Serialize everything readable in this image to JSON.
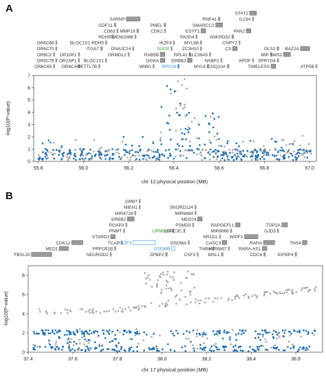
{
  "chart_data": [
    {
      "panel": "A",
      "type": "scatter",
      "xlabel": "chr 12 physical position (MB)",
      "ylabel": "-log10(P-value)",
      "xlim": [
        55.78,
        57.03
      ],
      "ylim": [
        0,
        7
      ],
      "xticks": [
        "55.8",
        "56.0",
        "56.2",
        "56.4",
        "56.6",
        "56.8",
        "57.0"
      ],
      "yticks": [
        "0",
        "1",
        "2",
        "3",
        "4",
        "5",
        "6",
        "7"
      ],
      "colors": {
        "blue": "#1f6fb0",
        "gray": "#a8a8a8",
        "green_gene": "#2e9a2e",
        "blue_gene": "#3b8fd0",
        "gene_box": "#9a9a9a"
      },
      "genes": [
        {
          "name": "SARNP",
          "x": 56.22,
          "row": 10,
          "w": 0.06
        },
        {
          "name": "STAT2",
          "x": 56.75,
          "row": 11,
          "w": 0.03
        },
        {
          "name": "RNF41",
          "x": 56.6,
          "row": 10,
          "w": 0.01
        },
        {
          "name": "IL23A",
          "x": 56.75,
          "row": 10,
          "w": 0.005
        },
        {
          "name": "GDF11",
          "x": 56.14,
          "row": 9,
          "w": 0.01
        },
        {
          "name": "PMEL",
          "x": 56.36,
          "row": 9,
          "w": 0.01
        },
        {
          "name": "SMARCC2",
          "x": 56.6,
          "row": 9,
          "w": 0.03
        },
        {
          "name": "CD63",
          "x": 56.15,
          "row": 8,
          "w": 0.005
        },
        {
          "name": "MMP19",
          "x": 56.24,
          "row": 8,
          "w": 0.01
        },
        {
          "name": "CDK2",
          "x": 56.36,
          "row": 8,
          "w": 0.005
        },
        {
          "name": "ESYT1",
          "x": 56.53,
          "row": 8,
          "w": 0.02
        },
        {
          "name": "PAN2",
          "x": 56.73,
          "row": 8,
          "w": 0.02
        },
        {
          "name": "RDH5",
          "x": 56.13,
          "row": 7,
          "w": 0.005
        },
        {
          "name": "TMEM198B",
          "x": 56.23,
          "row": 7,
          "w": 0.005
        },
        {
          "name": "PA2G4",
          "x": 56.5,
          "row": 7,
          "w": 0.005
        },
        {
          "name": "ANKRD52",
          "x": 56.66,
          "row": 7,
          "w": 0.01
        },
        {
          "name": "OR6C68",
          "x": 55.88,
          "row": 6,
          "w": 0.003
        },
        {
          "name": "BLOC1S1-RDH5",
          "x": 56.1,
          "row": 6,
          "w": 0.005
        },
        {
          "name": "IKZF4",
          "x": 56.4,
          "row": 6,
          "w": 0.005
        },
        {
          "name": "MYL6B",
          "x": 56.52,
          "row": 6,
          "w": 0.005
        },
        {
          "name": "CNPY2",
          "x": 56.69,
          "row": 6,
          "w": 0.005
        },
        {
          "name": "OR6C70",
          "x": 55.88,
          "row": 5,
          "w": 0.003
        },
        {
          "name": "ITGA7",
          "x": 56.08,
          "row": 5,
          "w": 0.01
        },
        {
          "name": "DNAJC14",
          "x": 56.22,
          "row": 5,
          "w": 0.005
        },
        {
          "name": "SUOX",
          "x": 56.39,
          "row": 5,
          "w": 0.005,
          "color": "green"
        },
        {
          "name": "ZC3H10",
          "x": 56.52,
          "row": 5,
          "w": 0.005
        },
        {
          "name": "CS",
          "x": 56.67,
          "row": 5,
          "w": 0.02
        },
        {
          "name": "GLS2",
          "x": 56.86,
          "row": 5,
          "w": 0.01
        },
        {
          "name": "BAZ2A",
          "x": 56.98,
          "row": 5,
          "w": 0.04
        },
        {
          "name": "OR6C2",
          "x": 55.87,
          "row": 4,
          "w": 0.003
        },
        {
          "name": "OR10P1",
          "x": 55.98,
          "row": 4,
          "w": 0.003
        },
        {
          "name": "ORMDL2",
          "x": 56.2,
          "row": 4,
          "w": 0.005
        },
        {
          "name": "RAB5B",
          "x": 56.35,
          "row": 4,
          "w": 0.02
        },
        {
          "name": "RPL41",
          "x": 56.47,
          "row": 4,
          "w": 0.003
        },
        {
          "name": "SLC39A5",
          "x": 56.56,
          "row": 4,
          "w": 0.005
        },
        {
          "name": "MIP",
          "x": 56.83,
          "row": 4,
          "w": 0.005
        },
        {
          "name": "SMS2",
          "x": 56.9,
          "row": 4,
          "w": 0.03
        },
        {
          "name": "OR6C76",
          "x": 55.88,
          "row": 3,
          "w": 0.003
        },
        {
          "name": "OR2AP1",
          "x": 55.98,
          "row": 3,
          "w": 0.003
        },
        {
          "name": "BLOC1S1",
          "x": 56.1,
          "row": 3,
          "w": 0.003
        },
        {
          "name": "DGKA",
          "x": 56.35,
          "row": 3,
          "w": 0.02
        },
        {
          "name": "ERBB3",
          "x": 56.47,
          "row": 3,
          "w": 0.02
        },
        {
          "name": "NABP2",
          "x": 56.61,
          "row": 3,
          "w": 0.005
        },
        {
          "name": "APOF",
          "x": 56.75,
          "row": 3,
          "w": 0.003
        },
        {
          "name": "SPRYD4",
          "x": 56.86,
          "row": 3,
          "w": 0.003
        },
        {
          "name": "OR6C65",
          "x": 55.87,
          "row": 2,
          "w": 0.003
        },
        {
          "name": "OR6C4",
          "x": 55.98,
          "row": 2,
          "w": 0.003
        },
        {
          "name": "METTL7B",
          "x": 56.07,
          "row": 2,
          "w": 0.003
        },
        {
          "name": "WIBG",
          "x": 56.31,
          "row": 2,
          "w": 0.005
        },
        {
          "name": "RPS26",
          "x": 56.42,
          "row": 2,
          "w": 0.003,
          "color": "blue"
        },
        {
          "name": "MYL6",
          "x": 56.55,
          "row": 2,
          "w": 0.005
        },
        {
          "name": "COQ10A",
          "x": 56.64,
          "row": 2,
          "w": 0.01
        },
        {
          "name": "TIMELESS",
          "x": 56.84,
          "row": 2,
          "w": 0.02
        },
        {
          "name": "ATP5B",
          "x": 57.03,
          "row": 2,
          "w": 0.005
        }
      ]
    },
    {
      "panel": "B",
      "type": "scatter",
      "xlabel": "chr 17 physical position (MB)",
      "ylabel": "-log10(P-value)",
      "xlim": [
        37.4,
        38.72
      ],
      "ylim": [
        0,
        9
      ],
      "xticks": [
        "37.4",
        "37.6",
        "37.8",
        "38.0",
        "38.2",
        "38.4",
        "38.6"
      ],
      "yticks": [
        "0",
        "2",
        "4",
        "6",
        "8"
      ],
      "colors": {
        "blue": "#1f6fb0",
        "gray": "#a8a8a8",
        "green_gene": "#2e9a2e",
        "blue_gene": "#3b8fd0",
        "gene_box": "#9a9a9a"
      },
      "genes": [
        {
          "name": "GRB7",
          "x": 37.9,
          "row": 11,
          "w": 0.005
        },
        {
          "name": "MIEN1",
          "x": 37.9,
          "row": 10,
          "w": 0.003
        },
        {
          "name": "SNORD124",
          "x": 38.15,
          "row": 10,
          "w": 0.003
        },
        {
          "name": "MIR4728",
          "x": 37.88,
          "row": 9,
          "w": 0.003
        },
        {
          "name": "MIR6884",
          "x": 38.15,
          "row": 9,
          "w": 0.003
        },
        {
          "name": "ERBB2",
          "x": 37.86,
          "row": 8,
          "w": 0.03
        },
        {
          "name": "MED24",
          "x": 38.17,
          "row": 8,
          "w": 0.02
        },
        {
          "name": "PGAP3",
          "x": 37.84,
          "row": 7,
          "w": 0.005
        },
        {
          "name": "PSMD3",
          "x": 38.14,
          "row": 7,
          "w": 0.005
        },
        {
          "name": "RAPGEFL1",
          "x": 38.34,
          "row": 7,
          "w": 0.02
        },
        {
          "name": "TOP2A",
          "x": 38.55,
          "row": 7,
          "w": 0.025
        },
        {
          "name": "PNMT",
          "x": 37.83,
          "row": 6,
          "w": 0.003
        },
        {
          "name": "ORMDL3",
          "x": 38.05,
          "row": 6,
          "w": 0.005,
          "color": "green"
        },
        {
          "name": "LRRC3C",
          "x": 38.1,
          "row": 6,
          "w": 0.003
        },
        {
          "name": "MIR6866",
          "x": 38.31,
          "row": 6,
          "w": 0.003
        },
        {
          "name": "GJD3",
          "x": 38.52,
          "row": 6,
          "w": 0.003
        },
        {
          "name": "STARD3",
          "x": 37.78,
          "row": 5,
          "w": 0.02
        },
        {
          "name": "NR1D1",
          "x": 38.26,
          "row": 5,
          "w": 0.003
        },
        {
          "name": "WIPF2",
          "x": 38.4,
          "row": 5,
          "w": 0.06
        },
        {
          "name": "CDK12",
          "x": 37.62,
          "row": 4,
          "w": 0.05
        },
        {
          "name": "TCAP",
          "x": 37.82,
          "row": 4,
          "w": 0.003
        },
        {
          "name": "IKZF3",
          "x": 37.92,
          "row": 4,
          "w": 0.1,
          "color": "blue",
          "outlined": true
        },
        {
          "name": "GSDMA",
          "x": 38.12,
          "row": 4,
          "w": 0.005
        },
        {
          "name": "CASC3",
          "x": 38.28,
          "row": 4,
          "w": 0.02
        },
        {
          "name": "RARA",
          "x": 38.48,
          "row": 4,
          "w": 0.05
        },
        {
          "name": "TNS4",
          "x": 38.64,
          "row": 4,
          "w": 0.02
        },
        {
          "name": "MED1",
          "x": 37.56,
          "row": 3,
          "w": 0.04
        },
        {
          "name": "PPP1R1B",
          "x": 37.79,
          "row": 3,
          "w": 0.005
        },
        {
          "name": "GSDMB",
          "x": 38.05,
          "row": 3,
          "w": 0.015,
          "color": "blue",
          "outlined": true
        },
        {
          "name": "THRA",
          "x": 38.23,
          "row": 3,
          "w": 0.005
        },
        {
          "name": "MIR6867",
          "x": 38.3,
          "row": 3,
          "w": 0.003
        },
        {
          "name": "RARA-AS1",
          "x": 38.46,
          "row": 3,
          "w": 0.02
        },
        {
          "name": "FBXL20",
          "x": 37.46,
          "row": 2,
          "w": 0.09
        },
        {
          "name": "NEUROD2",
          "x": 37.77,
          "row": 2,
          "w": 0.003
        },
        {
          "name": "ZPBP2",
          "x": 38.02,
          "row": 2,
          "w": 0.01
        },
        {
          "name": "CSF3",
          "x": 38.16,
          "row": 2,
          "w": 0.003
        },
        {
          "name": "MSL1",
          "x": 38.27,
          "row": 2,
          "w": 0.01
        },
        {
          "name": "CDC6",
          "x": 38.46,
          "row": 2,
          "w": 0.01
        },
        {
          "name": "IGFBP4",
          "x": 38.6,
          "row": 2,
          "w": 0.01
        }
      ]
    }
  ]
}
